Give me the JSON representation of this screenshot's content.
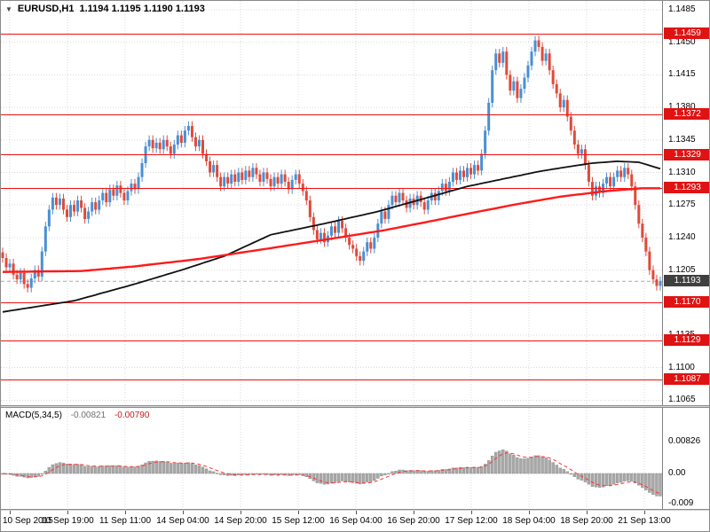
{
  "header": {
    "marker": "▼",
    "symbol_period": "EURUSD,H1",
    "ohlc": "1.1194 1.1195 1.1190 1.1193"
  },
  "price_axis": {
    "ticks": [
      "1.1485",
      "1.1450",
      "1.1415",
      "1.1380",
      "1.1345",
      "1.1310",
      "1.1275",
      "1.1240",
      "1.1205",
      "1.1135",
      "1.1100",
      "1.1065"
    ],
    "sr_levels": [
      "1.1459",
      "1.1372",
      "1.1329",
      "1.1293",
      "1.1170",
      "1.1129",
      "1.1087"
    ],
    "current": "1.1193"
  },
  "macd_panel": {
    "label": "MACD(5,34,5)",
    "value": "-0.00821",
    "signal": "-0.00790",
    "axis_ticks": [
      "0.00826",
      "0.00",
      "-0.009"
    ]
  },
  "colors": {
    "up": "#4a8fd3",
    "down": "#e04a3a",
    "sr_line": "#ee1111",
    "sr_badge_bg": "#e01313",
    "current_badge_bg": "#3f3f3f",
    "ma_black": "#111111",
    "ma_red": "#ff1a1a",
    "macd_bar": "#a8a8a8",
    "macd_signal": "#ff3333",
    "grid": "#d9d9d9"
  },
  "chart_data": {
    "type": "candlestick",
    "symbol": "EURUSD",
    "timeframe": "H1",
    "quote": {
      "open": 1.1194,
      "high": 1.1195,
      "low": 1.119,
      "close": 1.1193
    },
    "current_price": 1.1193,
    "price_axis_top": 1.1485,
    "price_axis_step": 0.0035,
    "closes": [
      1.1218,
      1.1208,
      1.1212,
      1.12,
      1.1195,
      1.1202,
      1.119,
      1.1186,
      1.1196,
      1.1205,
      1.1198,
      1.1225,
      1.1252,
      1.127,
      1.1283,
      1.1275,
      1.1282,
      1.127,
      1.1262,
      1.1275,
      1.1268,
      1.128,
      1.1272,
      1.126,
      1.1268,
      1.1278,
      1.127,
      1.128,
      1.1288,
      1.1278,
      1.1292,
      1.1285,
      1.1296,
      1.1288,
      1.128,
      1.129,
      1.1298,
      1.1292,
      1.1305,
      1.132,
      1.1338,
      1.1345,
      1.1336,
      1.1342,
      1.1335,
      1.1345,
      1.1338,
      1.133,
      1.134,
      1.135,
      1.1342,
      1.1355,
      1.136,
      1.1348,
      1.1338,
      1.1345,
      1.133,
      1.1322,
      1.131,
      1.1318,
      1.1305,
      1.1295,
      1.1305,
      1.1298,
      1.1308,
      1.13,
      1.131,
      1.1302,
      1.1312,
      1.1305,
      1.1315,
      1.1308,
      1.13,
      1.131,
      1.1303,
      1.1295,
      1.1305,
      1.1298,
      1.1308,
      1.13,
      1.1292,
      1.1302,
      1.1308,
      1.1298,
      1.129,
      1.128,
      1.1262,
      1.1248,
      1.1238,
      1.1245,
      1.1235,
      1.1242,
      1.1252,
      1.1245,
      1.1258,
      1.125,
      1.124,
      1.1232,
      1.1228,
      1.122,
      1.1215,
      1.1225,
      1.1235,
      1.1228,
      1.124,
      1.1255,
      1.1268,
      1.126,
      1.1275,
      1.1285,
      1.1278,
      1.1288,
      1.128,
      1.1272,
      1.1282,
      1.1275,
      1.1285,
      1.1278,
      1.127,
      1.128,
      1.1288,
      1.128,
      1.129,
      1.1298,
      1.129,
      1.13,
      1.131,
      1.1302,
      1.1312,
      1.1305,
      1.1315,
      1.1308,
      1.1318,
      1.1312,
      1.133,
      1.1355,
      1.1385,
      1.142,
      1.1438,
      1.1428,
      1.144,
      1.1415,
      1.1398,
      1.1408,
      1.139,
      1.14,
      1.1412,
      1.1425,
      1.144,
      1.1452,
      1.1445,
      1.143,
      1.1438,
      1.142,
      1.1405,
      1.1395,
      1.138,
      1.1388,
      1.137,
      1.1355,
      1.134,
      1.133,
      1.1335,
      1.1318,
      1.13,
      1.1285,
      1.1295,
      1.1288,
      1.1298,
      1.1305,
      1.1295,
      1.1305,
      1.1312,
      1.1305,
      1.1315,
      1.1308,
      1.1295,
      1.1275,
      1.1255,
      1.124,
      1.1225,
      1.1205,
      1.1195,
      1.1188,
      1.1193
    ],
    "sr_levels": [
      1.1459,
      1.1372,
      1.1329,
      1.1293,
      1.117,
      1.1129,
      1.1087
    ],
    "ma_black": [
      [
        0,
        1.116
      ],
      [
        20,
        1.1172
      ],
      [
        37,
        1.119
      ],
      [
        50,
        1.1205
      ],
      [
        62,
        1.122
      ],
      [
        75,
        1.1243
      ],
      [
        90,
        1.1255
      ],
      [
        105,
        1.1268
      ],
      [
        118,
        1.1282
      ],
      [
        130,
        1.1295
      ],
      [
        140,
        1.1303
      ],
      [
        150,
        1.1311
      ],
      [
        158,
        1.1316
      ],
      [
        165,
        1.132
      ],
      [
        172,
        1.1322
      ],
      [
        178,
        1.1321
      ],
      [
        184,
        1.1314
      ]
    ],
    "ma_red": [
      [
        0,
        1.1203
      ],
      [
        22,
        1.1204
      ],
      [
        37,
        1.1209
      ],
      [
        55,
        1.1217
      ],
      [
        74,
        1.1228
      ],
      [
        94,
        1.124
      ],
      [
        107,
        1.1248
      ],
      [
        119,
        1.1257
      ],
      [
        132,
        1.1267
      ],
      [
        144,
        1.1276
      ],
      [
        156,
        1.1284
      ],
      [
        169,
        1.129
      ],
      [
        179,
        1.1293
      ],
      [
        184,
        1.1293
      ]
    ],
    "time_labels": [
      "10 Sep 2015",
      "10 Sep 19:00",
      "11 Sep 11:00",
      "14 Sep 04:00",
      "14 Sep 20:00",
      "15 Sep 12:00",
      "16 Sep 04:00",
      "16 Sep 20:00",
      "17 Sep 12:00",
      "18 Sep 04:00",
      "18 Sep 20:00",
      "21 Sep 13:00"
    ],
    "macd": {
      "fast": 5,
      "slow": 34,
      "signal": 5,
      "last_value": -0.00821,
      "last_signal": -0.0079,
      "scale_max": 0.00826,
      "scale_zero": 0.0,
      "scale_min": -0.009
    }
  }
}
